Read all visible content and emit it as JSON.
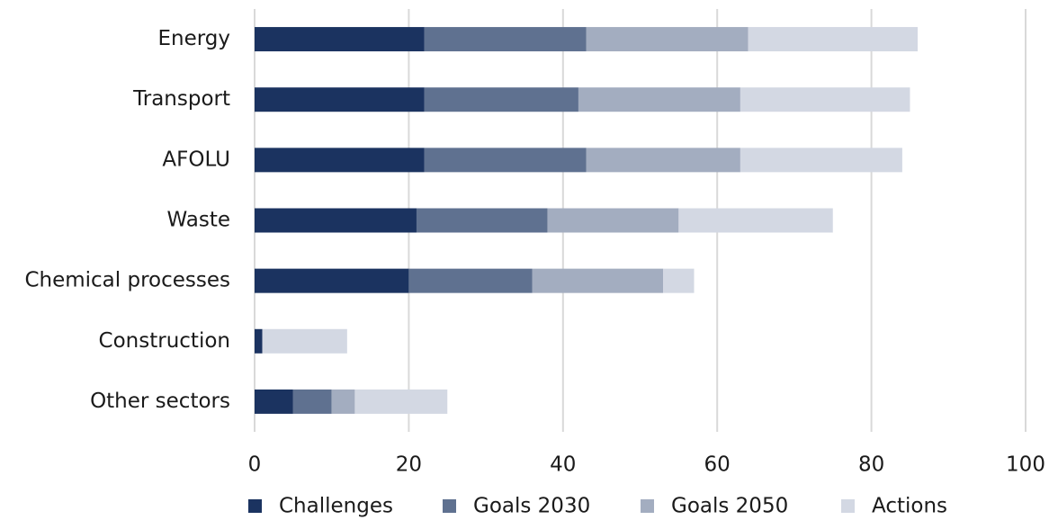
{
  "chart_data": {
    "type": "bar",
    "orientation": "horizontal",
    "stacked": true,
    "categories": [
      "Energy",
      "Transport",
      "AFOLU",
      "Waste",
      "Chemical processes",
      "Construction",
      "Other sectors"
    ],
    "series": [
      {
        "name": "Challenges",
        "color": "#1b3360",
        "values": [
          22,
          22,
          22,
          21,
          20,
          1,
          5
        ]
      },
      {
        "name": "Goals 2030",
        "color": "#5f7190",
        "values": [
          21,
          20,
          21,
          17,
          16,
          0,
          5
        ]
      },
      {
        "name": "Goals 2050",
        "color": "#a3adc0",
        "values": [
          21,
          21,
          20,
          17,
          17,
          0,
          3
        ]
      },
      {
        "name": "Actions",
        "color": "#d3d8e3",
        "values": [
          22,
          22,
          21,
          20,
          4,
          11,
          12
        ]
      }
    ],
    "xlim": [
      0,
      100
    ],
    "xticks": [
      0,
      20,
      40,
      60,
      80,
      100
    ],
    "grid": true,
    "legend": "bottom"
  }
}
